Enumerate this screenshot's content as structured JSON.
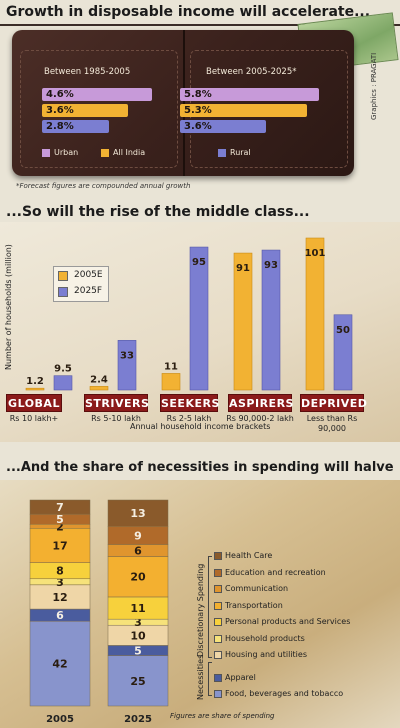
{
  "titles": {
    "section1": "Growth in disposable income will accelerate...",
    "section2": "...So will the rise of the middle class...",
    "section3": "...And the share of necessities in spending will halve"
  },
  "section1": {
    "period_left": "Between 1985-2005",
    "period_right": "Between 2005-2025*",
    "credit": "Graphics : PRAGATI",
    "footnote": "*Forecast figures are compounded annual growth",
    "legend": [
      {
        "label": "Urban",
        "color": "#c79ad9"
      },
      {
        "label": "All India",
        "color": "#f2b233"
      },
      {
        "label": "Rural",
        "color": "#7b7ed1"
      }
    ]
  },
  "section2": {
    "ylabel": "Number of households (million)",
    "xlabel": "Annual household income brackets",
    "legend": [
      {
        "label": "2005E",
        "color": "#f2b233"
      },
      {
        "label": "2025F",
        "color": "#7b7ed1"
      }
    ],
    "categories": [
      {
        "name": "GLOBAL",
        "income": "Rs 10 lakh+"
      },
      {
        "name": "STRIVERS",
        "income": "Rs 5-10 lakh"
      },
      {
        "name": "SEEKERS",
        "income": "Rs 2-5 lakh"
      },
      {
        "name": "ASPIRERS",
        "income": "Rs 90,000-2 lakh"
      },
      {
        "name": "DEPRIVED",
        "income": "Less than Rs 90,000"
      }
    ]
  },
  "section3": {
    "footnote": "Figures are share of spending",
    "discretionary_label": "Discretionary Spending",
    "necessities_label": "Necessities",
    "legend": [
      {
        "label": "Health Care",
        "color": "#8a5a2b"
      },
      {
        "label": "Education and recreation",
        "color": "#b06a2a"
      },
      {
        "label": "Communication",
        "color": "#e0952e"
      },
      {
        "label": "Transportation",
        "color": "#f3b030"
      },
      {
        "label": "Personal products and Services",
        "color": "#f7d13c"
      },
      {
        "label": "Household products",
        "color": "#f6e27a"
      },
      {
        "label": "Housing and utilities",
        "color": "#efd6a7"
      },
      {
        "label": "Apparel",
        "color": "#4a5c9e"
      },
      {
        "label": "Food, beverages and tobacco",
        "color": "#8894cc"
      }
    ]
  },
  "chart_data": [
    {
      "type": "bar",
      "orientation": "horizontal",
      "title": "Growth in disposable income will accelerate...",
      "categories": [
        "Urban",
        "All India",
        "Rural"
      ],
      "series": [
        {
          "name": "Between 1985-2005",
          "values": [
            4.6,
            3.6,
            2.8
          ],
          "labels": [
            "4.6%",
            "3.6%",
            "2.8%"
          ]
        },
        {
          "name": "Between 2005-2025*",
          "values": [
            5.8,
            5.3,
            3.6
          ],
          "labels": [
            "5.8%",
            "5.3%",
            "3.6%"
          ]
        }
      ]
    },
    {
      "type": "bar",
      "title": "...So will the rise of the middle class...",
      "ylabel": "Number of households (million)",
      "xlabel": "Annual household income brackets",
      "categories": [
        "GLOBAL",
        "STRIVERS",
        "SEEKERS",
        "ASPIRERS",
        "DEPRIVED"
      ],
      "series": [
        {
          "name": "2005E",
          "values": [
            1.2,
            2.4,
            11,
            91,
            101
          ]
        },
        {
          "name": "2025F",
          "values": [
            9.5,
            33,
            95,
            93,
            50
          ]
        }
      ],
      "ylim": [
        0,
        105
      ]
    },
    {
      "type": "bar",
      "stacked": true,
      "title": "...And the share of necessities in spending will halve",
      "categories": [
        "2005",
        "2025"
      ],
      "series": [
        {
          "name": "Food, beverages and tobacco",
          "values": [
            42,
            25
          ]
        },
        {
          "name": "Apparel",
          "values": [
            6,
            5
          ]
        },
        {
          "name": "Housing and utilities",
          "values": [
            12,
            10
          ]
        },
        {
          "name": "Household products",
          "values": [
            3,
            3
          ]
        },
        {
          "name": "Personal products and Services",
          "values": [
            8,
            11
          ]
        },
        {
          "name": "Transportation",
          "values": [
            17,
            20
          ]
        },
        {
          "name": "Communication",
          "values": [
            2,
            6
          ]
        },
        {
          "name": "Education and recreation",
          "values": [
            5,
            9
          ]
        },
        {
          "name": "Health Care",
          "values": [
            7,
            13
          ]
        }
      ]
    }
  ]
}
